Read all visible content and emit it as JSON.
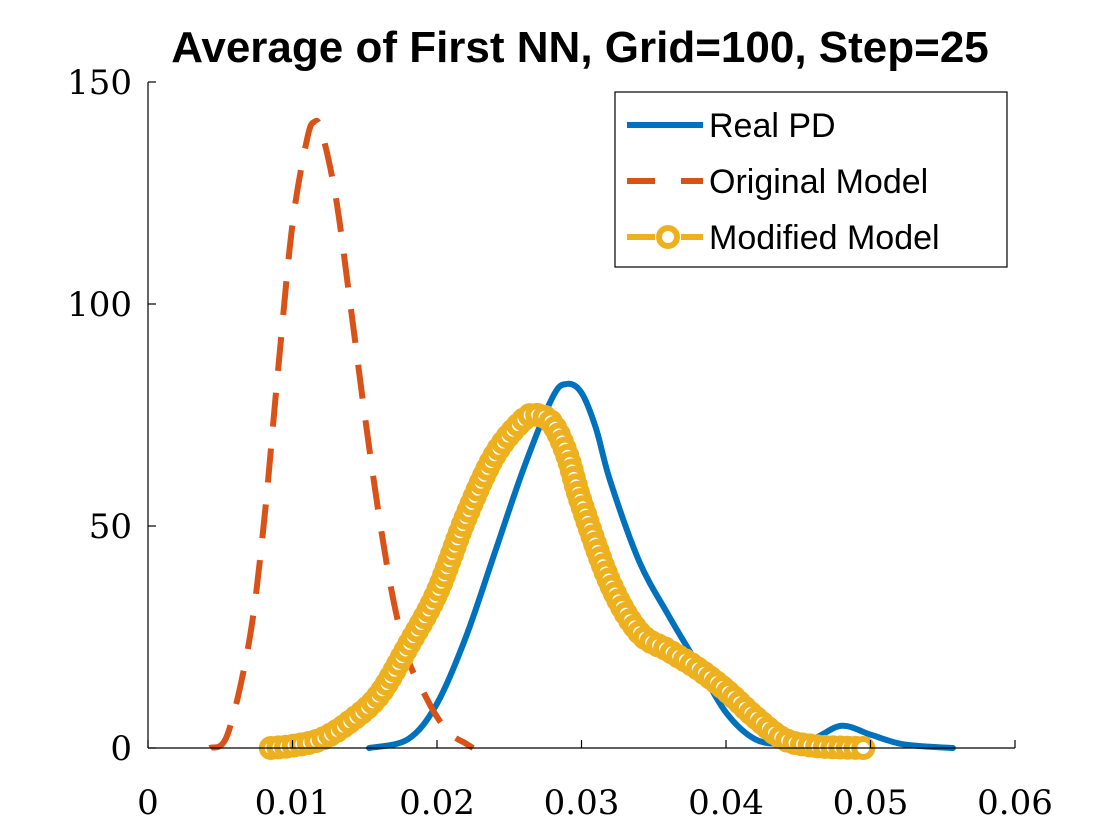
{
  "chart_data": {
    "type": "line",
    "title": "Average of First NN, Grid=100, Step=25",
    "xlabel": "",
    "ylabel": "",
    "xlim": [
      0,
      0.06
    ],
    "ylim": [
      0,
      150
    ],
    "xticks": [
      0,
      0.01,
      0.02,
      0.03,
      0.04,
      0.05,
      0.06
    ],
    "xtick_labels": [
      "0",
      "0.01",
      "0.02",
      "0.03",
      "0.04",
      "0.05",
      "0.06"
    ],
    "yticks": [
      0,
      50,
      100,
      150
    ],
    "ytick_labels": [
      "0",
      "50",
      "100",
      "150"
    ],
    "grid": false,
    "legend_position": "top-right",
    "series": [
      {
        "name": "Real PD",
        "color": "#0072BD",
        "line_style": "solid",
        "marker": "none",
        "x": [
          0.0153,
          0.018,
          0.02,
          0.022,
          0.024,
          0.026,
          0.028,
          0.029,
          0.03,
          0.031,
          0.032,
          0.034,
          0.036,
          0.038,
          0.04,
          0.042,
          0.044,
          0.046,
          0.048,
          0.05,
          0.052,
          0.054,
          0.0557
        ],
        "y": [
          0,
          2,
          10,
          25,
          44,
          63,
          79,
          82,
          80,
          72,
          60,
          42,
          30,
          19,
          8,
          2,
          1,
          2,
          5,
          3,
          1,
          0.3,
          0
        ]
      },
      {
        "name": "Original Model",
        "color": "#D95319",
        "line_style": "dashed",
        "marker": "none",
        "x": [
          0.0043,
          0.0055,
          0.007,
          0.008,
          0.009,
          0.01,
          0.011,
          0.0115,
          0.012,
          0.013,
          0.014,
          0.015,
          0.016,
          0.017,
          0.018,
          0.019,
          0.02,
          0.021,
          0.022,
          0.0225
        ],
        "y": [
          0,
          3,
          24,
          50,
          85,
          118,
          137,
          141,
          139,
          124,
          100,
          75,
          52,
          33,
          20,
          13,
          7,
          3,
          1,
          0
        ]
      },
      {
        "name": "Modified Model",
        "color": "#EDB120",
        "line_style": "dashed",
        "marker": "circle",
        "x": [
          0.0085,
          0.01,
          0.012,
          0.014,
          0.016,
          0.018,
          0.02,
          0.022,
          0.024,
          0.026,
          0.027,
          0.028,
          0.029,
          0.03,
          0.032,
          0.034,
          0.036,
          0.038,
          0.04,
          0.042,
          0.044,
          0.046,
          0.048,
          0.0495
        ],
        "y": [
          0,
          0.5,
          2,
          6,
          12,
          23,
          35,
          52,
          66,
          74,
          75,
          73,
          66,
          55,
          37,
          26,
          22,
          18,
          13,
          7,
          2,
          0.5,
          0.1,
          0
        ]
      }
    ]
  }
}
